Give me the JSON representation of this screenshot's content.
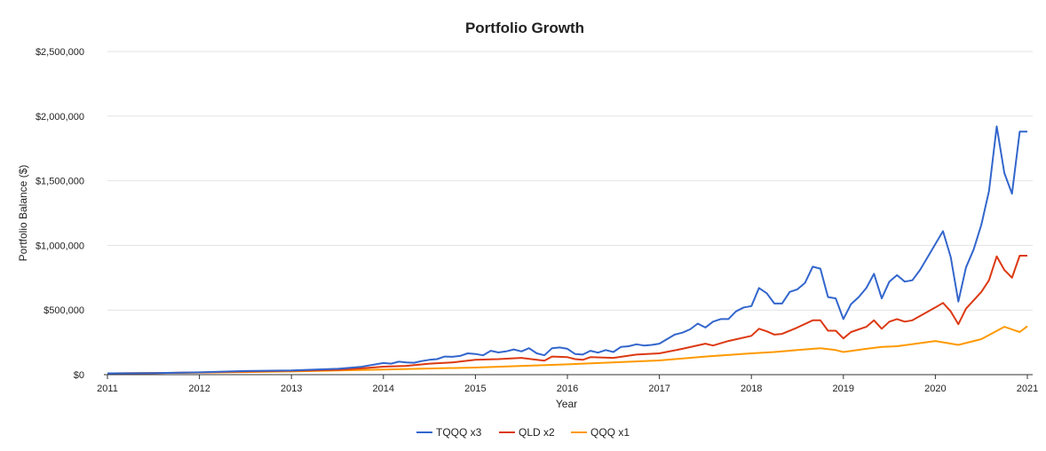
{
  "chart_data": {
    "type": "line",
    "title": "Portfolio Growth",
    "xlabel": "Year",
    "ylabel": "Portfolio Balance ($)",
    "xlim": [
      2011,
      2021
    ],
    "ylim": [
      0,
      2500000
    ],
    "x_ticks": [
      2011,
      2012,
      2013,
      2014,
      2015,
      2016,
      2017,
      2018,
      2019,
      2020,
      2021
    ],
    "x_tick_labels": [
      "2011",
      "2012",
      "2013",
      "2014",
      "2015",
      "2016",
      "2017",
      "2018",
      "2019",
      "2020",
      "2021"
    ],
    "y_ticks": [
      0,
      500000,
      1000000,
      1500000,
      2000000,
      2500000
    ],
    "y_tick_labels": [
      "$0",
      "$500,000",
      "$1,000,000",
      "$1,500,000",
      "$2,000,000",
      "$2,500,000"
    ],
    "grid": true,
    "legend_position": "bottom",
    "series": [
      {
        "name": "TQQQ x3",
        "color": "#3366cc",
        "x": [
          2011,
          2011.5,
          2012,
          2012.5,
          2013,
          2013.5,
          2013.75,
          2014,
          2014.083,
          2014.167,
          2014.25,
          2014.333,
          2014.417,
          2014.5,
          2014.583,
          2014.667,
          2014.75,
          2014.833,
          2014.917,
          2015,
          2015.083,
          2015.167,
          2015.25,
          2015.333,
          2015.417,
          2015.5,
          2015.583,
          2015.667,
          2015.75,
          2015.833,
          2015.917,
          2016,
          2016.083,
          2016.167,
          2016.25,
          2016.333,
          2016.417,
          2016.5,
          2016.583,
          2016.667,
          2016.75,
          2016.833,
          2016.917,
          2017,
          2017.083,
          2017.167,
          2017.25,
          2017.333,
          2017.417,
          2017.5,
          2017.583,
          2017.667,
          2017.75,
          2017.833,
          2017.917,
          2018,
          2018.083,
          2018.167,
          2018.25,
          2018.333,
          2018.417,
          2018.5,
          2018.583,
          2018.667,
          2018.75,
          2018.833,
          2018.917,
          2019,
          2019.083,
          2019.167,
          2019.25,
          2019.333,
          2019.417,
          2019.5,
          2019.583,
          2019.667,
          2019.75,
          2019.833,
          2019.917,
          2020,
          2020.083,
          2020.167,
          2020.25,
          2020.333,
          2020.417,
          2020.5,
          2020.583,
          2020.667,
          2020.75,
          2020.833,
          2020.917,
          2021
        ],
        "values": [
          10000,
          12000,
          18000,
          28000,
          32000,
          45000,
          60000,
          90000,
          85000,
          100000,
          95000,
          92000,
          105000,
          115000,
          120000,
          140000,
          138000,
          145000,
          165000,
          160000,
          150000,
          185000,
          172000,
          180000,
          195000,
          180000,
          205000,
          165000,
          150000,
          205000,
          210000,
          200000,
          160000,
          155000,
          185000,
          170000,
          190000,
          175000,
          215000,
          220000,
          235000,
          225000,
          230000,
          240000,
          275000,
          310000,
          325000,
          350000,
          395000,
          365000,
          410000,
          430000,
          430000,
          490000,
          520000,
          530000,
          670000,
          630000,
          550000,
          550000,
          640000,
          660000,
          710000,
          835000,
          820000,
          600000,
          590000,
          430000,
          545000,
          600000,
          670000,
          780000,
          590000,
          720000,
          770000,
          720000,
          730000,
          810000,
          910000,
          1010000,
          1110000,
          910000,
          565000,
          830000,
          970000,
          1160000,
          1420000,
          1920000,
          1560000,
          1400000,
          1880000,
          1880000
        ]
      },
      {
        "name": "QLD x2",
        "color": "#dc3912",
        "x": [
          2011,
          2011.5,
          2012,
          2012.5,
          2013,
          2013.5,
          2013.75,
          2014,
          2014.25,
          2014.5,
          2014.75,
          2015,
          2015.25,
          2015.5,
          2015.667,
          2015.75,
          2015.833,
          2016,
          2016.083,
          2016.167,
          2016.25,
          2016.5,
          2016.75,
          2017,
          2017.25,
          2017.5,
          2017.583,
          2017.75,
          2018,
          2018.083,
          2018.167,
          2018.25,
          2018.333,
          2018.5,
          2018.667,
          2018.75,
          2018.833,
          2018.917,
          2019,
          2019.083,
          2019.25,
          2019.333,
          2019.417,
          2019.5,
          2019.583,
          2019.667,
          2019.75,
          2020,
          2020.083,
          2020.167,
          2020.25,
          2020.333,
          2020.5,
          2020.583,
          2020.667,
          2020.75,
          2020.833,
          2020.917,
          2021
        ],
        "values": [
          10000,
          12000,
          17000,
          24000,
          30000,
          38000,
          48000,
          62000,
          68000,
          85000,
          95000,
          115000,
          120000,
          130000,
          115000,
          108000,
          140000,
          135000,
          120000,
          115000,
          135000,
          130000,
          155000,
          165000,
          200000,
          240000,
          225000,
          260000,
          300000,
          355000,
          335000,
          310000,
          315000,
          365000,
          420000,
          420000,
          340000,
          340000,
          280000,
          330000,
          370000,
          420000,
          355000,
          410000,
          430000,
          410000,
          420000,
          520000,
          555000,
          490000,
          390000,
          510000,
          640000,
          730000,
          915000,
          810000,
          750000,
          920000,
          920000
        ]
      },
      {
        "name": "QQQ x1",
        "color": "#ff9900",
        "x": [
          2011,
          2012,
          2013,
          2014,
          2015,
          2016,
          2017,
          2017.5,
          2018,
          2018.25,
          2018.5,
          2018.75,
          2018.917,
          2019,
          2019.25,
          2019.417,
          2019.583,
          2020,
          2020.25,
          2020.5,
          2020.75,
          2020.917,
          2021
        ],
        "values": [
          10000,
          15000,
          25000,
          40000,
          55000,
          80000,
          110000,
          140000,
          165000,
          175000,
          190000,
          205000,
          190000,
          175000,
          200000,
          215000,
          220000,
          260000,
          230000,
          275000,
          370000,
          330000,
          375000
        ]
      }
    ]
  }
}
